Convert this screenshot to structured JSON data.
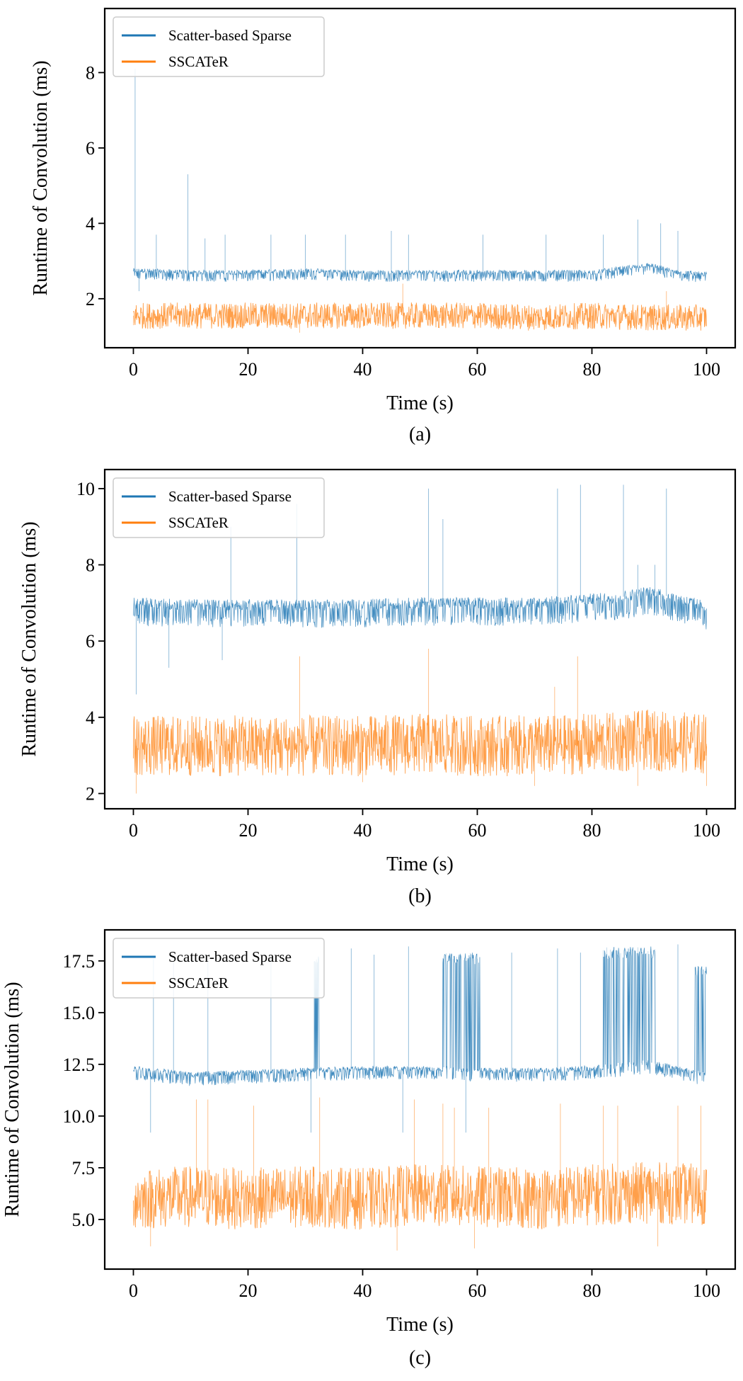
{
  "chart_data": [
    {
      "type": "line",
      "panel_label": "(a)",
      "xlabel": "Time (s)",
      "ylabel": "Runtime of Convolution (ms)",
      "xlim": [
        -5,
        105
      ],
      "ylim": [
        0.7,
        9.7
      ],
      "xticks": [
        0,
        20,
        40,
        60,
        80,
        100
      ],
      "yticks": [
        2,
        4,
        6,
        8
      ],
      "ytick_labels": [
        "2",
        "4",
        "6",
        "8"
      ],
      "legend": {
        "location": "upper-left",
        "entries": [
          "Scatter-based Sparse",
          "SSCATeR"
        ]
      },
      "series": [
        {
          "name": "Scatter-based Sparse",
          "color": "#1f77b4",
          "x": [
            0,
            10,
            20,
            30,
            40,
            50,
            60,
            70,
            80,
            85,
            90,
            95,
            100
          ],
          "values": [
            2.75,
            2.7,
            2.7,
            2.75,
            2.7,
            2.7,
            2.7,
            2.7,
            2.7,
            2.8,
            2.9,
            2.7,
            2.65
          ],
          "band": [
            2.45,
            2.95
          ],
          "spikes": [
            [
              0.3,
              8.1
            ],
            [
              9.5,
              5.3
            ],
            [
              4,
              3.7
            ],
            [
              12.5,
              3.6
            ],
            [
              16,
              3.7
            ],
            [
              24,
              3.7
            ],
            [
              30,
              3.7
            ],
            [
              37,
              3.7
            ],
            [
              45,
              3.8
            ],
            [
              48,
              3.7
            ],
            [
              61,
              3.7
            ],
            [
              72,
              3.7
            ],
            [
              82,
              3.7
            ],
            [
              88,
              4.1
            ],
            [
              92,
              4.0
            ],
            [
              95,
              3.8
            ],
            [
              1,
              2.2
            ]
          ]
        },
        {
          "name": "SSCATeR",
          "color": "#ff7f0e",
          "x": [
            0,
            10,
            20,
            30,
            40,
            50,
            60,
            70,
            80,
            90,
            100
          ],
          "values": [
            1.55,
            1.55,
            1.55,
            1.55,
            1.55,
            1.55,
            1.55,
            1.5,
            1.55,
            1.5,
            1.5
          ],
          "band": [
            1.2,
            1.9
          ],
          "spikes": [
            [
              47,
              2.4
            ],
            [
              93,
              2.2
            ],
            [
              29,
              1.1
            ],
            [
              80,
              1.2
            ],
            [
              0,
              1.3
            ]
          ]
        }
      ]
    },
    {
      "type": "line",
      "panel_label": "(b)",
      "xlabel": "Time (s)",
      "ylabel": "Runtime of Convolution (ms)",
      "xlim": [
        -5,
        105
      ],
      "ylim": [
        1.6,
        10.5
      ],
      "xticks": [
        0,
        20,
        40,
        60,
        80,
        100
      ],
      "yticks": [
        2,
        4,
        6,
        8,
        10
      ],
      "ytick_labels": [
        "2",
        "4",
        "6",
        "8",
        "10"
      ],
      "legend": {
        "location": "upper-left",
        "entries": [
          "Scatter-based Sparse",
          "SSCATeR"
        ]
      },
      "series": [
        {
          "name": "Scatter-based Sparse",
          "color": "#1f77b4",
          "x": [
            0,
            10,
            20,
            30,
            40,
            50,
            60,
            70,
            80,
            85,
            90,
            95,
            100
          ],
          "values": [
            7.0,
            6.95,
            6.95,
            6.95,
            6.95,
            7.0,
            7.0,
            7.0,
            7.1,
            7.15,
            7.3,
            7.1,
            6.9
          ],
          "band": [
            6.1,
            7.3
          ],
          "spikes": [
            [
              51.5,
              10.0
            ],
            [
              74,
              10.0
            ],
            [
              78,
              10.1
            ],
            [
              85.5,
              10.1
            ],
            [
              93,
              10.0
            ],
            [
              17,
              9.0
            ],
            [
              28.5,
              9.6
            ],
            [
              54,
              9.2
            ],
            [
              0.5,
              4.6
            ],
            [
              6.2,
              5.3
            ],
            [
              15.5,
              5.5
            ],
            [
              88,
              8.0
            ],
            [
              91,
              8.0
            ]
          ]
        },
        {
          "name": "SSCATeR",
          "color": "#ff7f0e",
          "x": [
            0,
            10,
            20,
            30,
            40,
            50,
            60,
            70,
            80,
            90,
            100
          ],
          "values": [
            3.25,
            3.25,
            3.25,
            3.25,
            3.25,
            3.3,
            3.25,
            3.25,
            3.3,
            3.4,
            3.3
          ],
          "band": [
            2.5,
            4.1
          ],
          "spikes": [
            [
              51.5,
              5.8
            ],
            [
              77.5,
              5.6
            ],
            [
              29,
              5.6
            ],
            [
              73.5,
              4.8
            ],
            [
              0.5,
              2.0
            ],
            [
              40,
              2.3
            ],
            [
              70,
              2.2
            ],
            [
              88,
              2.2
            ],
            [
              100,
              2.2
            ]
          ]
        }
      ]
    },
    {
      "type": "line",
      "panel_label": "(c)",
      "xlabel": "Time (s)",
      "ylabel": "Runtime of Convolution (ms)",
      "xlim": [
        -5,
        105
      ],
      "ylim": [
        2.6,
        19.0
      ],
      "xticks": [
        0,
        20,
        40,
        60,
        80,
        100
      ],
      "yticks": [
        5.0,
        7.5,
        10.0,
        12.5,
        15.0,
        17.5
      ],
      "ytick_labels": [
        "5.0",
        "7.5",
        "10.0",
        "12.5",
        "15.0",
        "17.5"
      ],
      "legend": {
        "location": "upper-left",
        "entries": [
          "Scatter-based Sparse",
          "SSCATeR"
        ]
      },
      "series": [
        {
          "name": "Scatter-based Sparse",
          "color": "#1f77b4",
          "x": [
            0,
            10,
            20,
            30,
            40,
            50,
            60,
            70,
            80,
            90,
            100
          ],
          "values": [
            12.3,
            12.0,
            12.1,
            12.2,
            12.3,
            12.3,
            12.2,
            12.2,
            12.3,
            12.6,
            12.0
          ],
          "band": [
            11.8,
            12.9
          ],
          "high_segments": [
            [
              54,
              60.5,
              17.9
            ],
            [
              82,
              91,
              18.2
            ],
            [
              98,
              100,
              17.3
            ],
            [
              31.5,
              32.5,
              17.8
            ]
          ],
          "spikes": [
            [
              3.5,
              17.6
            ],
            [
              7,
              17.5
            ],
            [
              13,
              17.6
            ],
            [
              24,
              17.7
            ],
            [
              38,
              18.1
            ],
            [
              42,
              17.8
            ],
            [
              48,
              18.2
            ],
            [
              66,
              17.9
            ],
            [
              74,
              18.1
            ],
            [
              78,
              17.9
            ],
            [
              95,
              18.3
            ],
            [
              3,
              9.2
            ],
            [
              31,
              9.2
            ],
            [
              47,
              9.2
            ],
            [
              58,
              9.2
            ]
          ]
        },
        {
          "name": "SSCATeR",
          "color": "#ff7f0e",
          "x": [
            0,
            10,
            20,
            30,
            40,
            50,
            60,
            70,
            80,
            90,
            100
          ],
          "values": [
            6.0,
            6.1,
            6.0,
            6.1,
            6.0,
            6.2,
            6.1,
            6.0,
            6.2,
            6.3,
            6.2
          ],
          "band": [
            4.6,
            7.6
          ],
          "spikes": [
            [
              11,
              10.8
            ],
            [
              13,
              10.8
            ],
            [
              21,
              10.5
            ],
            [
              32.5,
              10.9
            ],
            [
              49,
              10.8
            ],
            [
              54,
              10.6
            ],
            [
              56,
              10.4
            ],
            [
              62,
              10.4
            ],
            [
              74.5,
              10.6
            ],
            [
              82,
              10.5
            ],
            [
              84.5,
              10.5
            ],
            [
              95,
              10.5
            ],
            [
              99,
              10.5
            ],
            [
              3,
              3.7
            ],
            [
              46,
              3.5
            ],
            [
              59.5,
              3.6
            ],
            [
              91.5,
              3.7
            ]
          ]
        }
      ]
    }
  ]
}
